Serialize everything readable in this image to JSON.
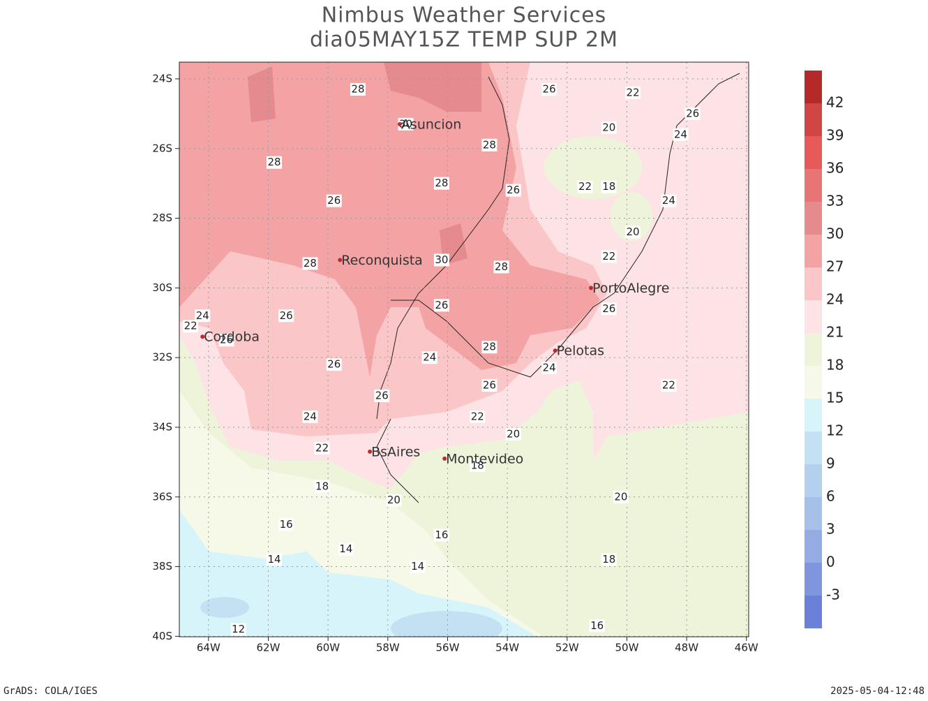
{
  "title": [
    "Nimbus Weather Services",
    "dia05MAY15Z TEMP SUP 2M"
  ],
  "map": {
    "lat_ticks": [
      {
        "value": -24,
        "label": "24S"
      },
      {
        "value": -26,
        "label": "26S"
      },
      {
        "value": -28,
        "label": "28S"
      },
      {
        "value": -30,
        "label": "30S"
      },
      {
        "value": -32,
        "label": "32S"
      },
      {
        "value": -34,
        "label": "34S"
      },
      {
        "value": -36,
        "label": "36S"
      },
      {
        "value": -38,
        "label": "38S"
      },
      {
        "value": -40,
        "label": "40S"
      }
    ],
    "lon_ticks": [
      {
        "value": -64,
        "label": "64W"
      },
      {
        "value": -62,
        "label": "62W"
      },
      {
        "value": -60,
        "label": "60W"
      },
      {
        "value": -58,
        "label": "58W"
      },
      {
        "value": -56,
        "label": "56W"
      },
      {
        "value": -54,
        "label": "54W"
      },
      {
        "value": -52,
        "label": "52W"
      },
      {
        "value": -50,
        "label": "50W"
      },
      {
        "value": -48,
        "label": "48W"
      },
      {
        "value": -46,
        "label": "46W"
      }
    ],
    "cities": [
      {
        "name": "Asuncion",
        "lon": -57.6,
        "lat": -25.3
      },
      {
        "name": "Reconquista",
        "lon": -59.6,
        "lat": -29.2
      },
      {
        "name": "PortoAlegre",
        "lon": -51.2,
        "lat": -30.0
      },
      {
        "name": "Cordoba",
        "lon": -64.2,
        "lat": -31.4
      },
      {
        "name": "Pelotas",
        "lon": -52.4,
        "lat": -31.8
      },
      {
        "name": "BsAires",
        "lon": -58.6,
        "lat": -34.7
      },
      {
        "name": "Montevideo",
        "lon": -56.1,
        "lat": -34.9
      }
    ],
    "contour_labels": [
      {
        "value": 28,
        "lon": -59.0,
        "lat": -24.3
      },
      {
        "value": 30,
        "lon": -57.4,
        "lat": -25.3
      },
      {
        "value": 26,
        "lon": -52.6,
        "lat": -24.3
      },
      {
        "value": 22,
        "lon": -49.8,
        "lat": -24.4
      },
      {
        "value": 26,
        "lon": -47.8,
        "lat": -25.0
      },
      {
        "value": 20,
        "lon": -50.6,
        "lat": -25.4
      },
      {
        "value": 24,
        "lon": -48.2,
        "lat": -25.6
      },
      {
        "value": 28,
        "lon": -61.8,
        "lat": -26.4
      },
      {
        "value": 28,
        "lon": -54.6,
        "lat": -25.9
      },
      {
        "value": 28,
        "lon": -56.2,
        "lat": -27.0
      },
      {
        "value": 26,
        "lon": -53.8,
        "lat": -27.2
      },
      {
        "value": 22,
        "lon": -51.4,
        "lat": -27.1
      },
      {
        "value": 18,
        "lon": -50.6,
        "lat": -27.1
      },
      {
        "value": 26,
        "lon": -59.8,
        "lat": -27.5
      },
      {
        "value": 24,
        "lon": -48.6,
        "lat": -27.5
      },
      {
        "value": 20,
        "lon": -49.8,
        "lat": -28.4
      },
      {
        "value": 22,
        "lon": -50.6,
        "lat": -29.1
      },
      {
        "value": 28,
        "lon": -60.6,
        "lat": -29.3
      },
      {
        "value": 30,
        "lon": -56.2,
        "lat": -29.2
      },
      {
        "value": 28,
        "lon": -54.2,
        "lat": -29.4
      },
      {
        "value": 26,
        "lon": -56.2,
        "lat": -30.5
      },
      {
        "value": 26,
        "lon": -50.6,
        "lat": -30.6
      },
      {
        "value": 24,
        "lon": -64.2,
        "lat": -30.8
      },
      {
        "value": 26,
        "lon": -61.4,
        "lat": -30.8
      },
      {
        "value": 22,
        "lon": -64.6,
        "lat": -31.1
      },
      {
        "value": 26,
        "lon": -63.4,
        "lat": -31.5
      },
      {
        "value": 28,
        "lon": -54.6,
        "lat": -31.7
      },
      {
        "value": 24,
        "lon": -56.6,
        "lat": -32.0
      },
      {
        "value": 26,
        "lon": -59.8,
        "lat": -32.2
      },
      {
        "value": 24,
        "lon": -52.6,
        "lat": -32.3
      },
      {
        "value": 26,
        "lon": -54.6,
        "lat": -32.8
      },
      {
        "value": 22,
        "lon": -48.6,
        "lat": -32.8
      },
      {
        "value": 26,
        "lon": -58.2,
        "lat": -33.1
      },
      {
        "value": 24,
        "lon": -60.6,
        "lat": -33.7
      },
      {
        "value": 22,
        "lon": -55.0,
        "lat": -33.7
      },
      {
        "value": 20,
        "lon": -53.8,
        "lat": -34.2
      },
      {
        "value": 22,
        "lon": -60.2,
        "lat": -34.6
      },
      {
        "value": 18,
        "lon": -55.0,
        "lat": -35.1
      },
      {
        "value": 18,
        "lon": -60.2,
        "lat": -35.7
      },
      {
        "value": 20,
        "lon": -57.8,
        "lat": -36.1
      },
      {
        "value": 20,
        "lon": -50.2,
        "lat": -36.0
      },
      {
        "value": 16,
        "lon": -61.4,
        "lat": -36.8
      },
      {
        "value": 16,
        "lon": -56.2,
        "lat": -37.1
      },
      {
        "value": 14,
        "lon": -59.4,
        "lat": -37.5
      },
      {
        "value": 14,
        "lon": -61.8,
        "lat": -37.8
      },
      {
        "value": 18,
        "lon": -50.6,
        "lat": -37.8
      },
      {
        "value": 14,
        "lon": -57.0,
        "lat": -38.0
      },
      {
        "value": 16,
        "lon": -51.0,
        "lat": -39.7
      },
      {
        "value": 12,
        "lon": -63.0,
        "lat": -39.8
      }
    ]
  },
  "colorbar": {
    "levels": [
      -3,
      0,
      3,
      6,
      9,
      12,
      15,
      18,
      21,
      24,
      27,
      30,
      33,
      36,
      39,
      42
    ],
    "colors": [
      "#6b80d8",
      "#7f96de",
      "#95abe4",
      "#a6c0ea",
      "#b4d0ef",
      "#c3e1f3",
      "#d6f4fa",
      "#f6f9e8",
      "#eef4da",
      "#fde3e5",
      "#fbc6c8",
      "#f4a3a5",
      "#e58b8d",
      "#e87575",
      "#e85a5a",
      "#d04545",
      "#b42a2a"
    ]
  },
  "footer": {
    "left": "GrADS: COLA/IGES",
    "right": "2025-05-04-12:48"
  }
}
